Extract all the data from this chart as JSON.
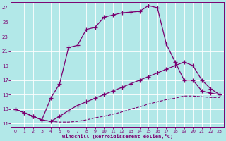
{
  "xlabel": "Windchill (Refroidissement éolien,°C)",
  "bg_color": "#b2e8e8",
  "line_color": "#7b0070",
  "xlim_min": -0.5,
  "xlim_max": 23.5,
  "ylim_min": 10.5,
  "ylim_max": 27.8,
  "xticks": [
    0,
    1,
    2,
    3,
    4,
    5,
    6,
    7,
    8,
    9,
    10,
    11,
    12,
    13,
    14,
    15,
    16,
    17,
    18,
    19,
    20,
    21,
    22,
    23
  ],
  "yticks": [
    11,
    13,
    15,
    17,
    19,
    21,
    23,
    25,
    27
  ],
  "line1_x": [
    0,
    1,
    2,
    3,
    4,
    5,
    6,
    7,
    8,
    9,
    10,
    11,
    12,
    13,
    14,
    15,
    16,
    17,
    18,
    19,
    20,
    21,
    22,
    23
  ],
  "line1_y": [
    13,
    12.5,
    12.0,
    11.5,
    14.5,
    16.5,
    21.5,
    21.8,
    24.0,
    24.3,
    25.7,
    26.0,
    26.3,
    26.4,
    26.5,
    27.3,
    27.0,
    22.0,
    19.5,
    17.0,
    17.0,
    15.5,
    15.2,
    15.0
  ],
  "line2_x": [
    0,
    1,
    2,
    3,
    4,
    5,
    6,
    7,
    8,
    9,
    10,
    11,
    12,
    13,
    14,
    15,
    16,
    17,
    18,
    19,
    20,
    21,
    22,
    23
  ],
  "line2_y": [
    13,
    12.5,
    12.0,
    11.5,
    11.3,
    12.0,
    12.8,
    13.5,
    14.0,
    14.5,
    15.0,
    15.5,
    16.0,
    16.5,
    17.0,
    17.5,
    18.0,
    18.5,
    19.0,
    19.5,
    19.0,
    17.0,
    15.8,
    15.0
  ],
  "line3_x": [
    0,
    1,
    2,
    3,
    4,
    5,
    6,
    7,
    8,
    9,
    10,
    11,
    12,
    13,
    14,
    15,
    16,
    17,
    18,
    19,
    20,
    21,
    22,
    23
  ],
  "line3_y": [
    13,
    12.5,
    12.0,
    11.5,
    11.3,
    11.2,
    11.2,
    11.3,
    11.5,
    11.8,
    12.0,
    12.3,
    12.6,
    13.0,
    13.3,
    13.7,
    14.0,
    14.3,
    14.5,
    14.8,
    14.8,
    14.7,
    14.6,
    14.6
  ]
}
